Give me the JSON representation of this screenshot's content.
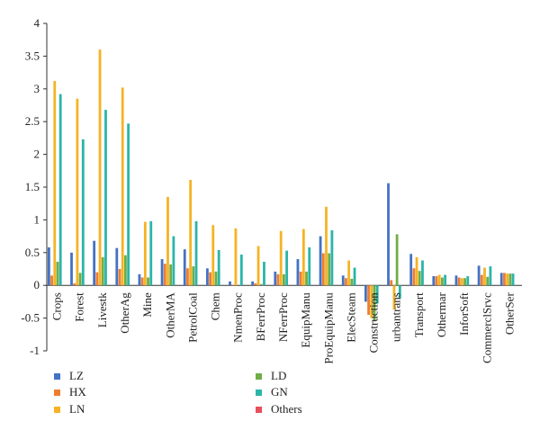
{
  "chart_data": {
    "type": "bar",
    "title": "",
    "xlabel": "",
    "ylabel": "",
    "ylim": [
      -1,
      4
    ],
    "yticks": [
      "-1",
      "-0.5",
      "0",
      "0.5",
      "1",
      "1.5",
      "2",
      "2.5",
      "3",
      "3.5",
      "4"
    ],
    "grid": false,
    "legend_position": "bottom",
    "categories": [
      "Crops",
      "Forest",
      "Livestk",
      "OtherAg",
      "Mine",
      "OtherMA",
      "PetrolCoal",
      "Chem",
      "NmenProc",
      "BFerrProc",
      "NFerrProc",
      "EquipManu",
      "ProEquipManu",
      "ElecSteam",
      "Construction",
      "urbantrans",
      "Transport",
      "Othermar",
      "InforSoft",
      "CommerclSrvc",
      "OtherSer"
    ],
    "series": [
      {
        "name": "LZ",
        "color": "#4472c4",
        "values": [
          0.58,
          0.5,
          0.68,
          0.57,
          0.17,
          0.4,
          0.55,
          0.26,
          0.06,
          0.06,
          0.21,
          0.4,
          0.75,
          0.15,
          -0.25,
          1.56,
          0.48,
          0.14,
          0.15,
          0.3,
          0.19
        ]
      },
      {
        "name": "HX",
        "color": "#ed7d31",
        "values": [
          0.15,
          0.03,
          0.2,
          0.25,
          0.12,
          0.33,
          0.26,
          0.2,
          0.01,
          0.03,
          0.17,
          0.21,
          0.49,
          0.11,
          -0.45,
          0.08,
          0.26,
          0.14,
          0.12,
          0.16,
          0.19
        ]
      },
      {
        "name": "LN",
        "color": "#f5b325",
        "values": [
          3.12,
          2.85,
          3.6,
          3.02,
          0.97,
          1.35,
          1.61,
          0.92,
          0.87,
          0.6,
          0.83,
          0.86,
          1.2,
          0.38,
          -0.5,
          -0.37,
          0.43,
          0.16,
          0.11,
          0.27,
          0.18
        ]
      },
      {
        "name": "LD",
        "color": "#70ad47",
        "values": [
          0.36,
          0.19,
          0.43,
          0.46,
          0.12,
          0.32,
          0.29,
          0.21,
          0.0,
          0.02,
          0.17,
          0.21,
          0.49,
          0.1,
          -0.55,
          0.78,
          0.22,
          0.12,
          0.11,
          0.13,
          0.18
        ]
      },
      {
        "name": "GN",
        "color": "#2bb5a9",
        "values": [
          2.92,
          2.23,
          2.68,
          2.47,
          0.98,
          0.75,
          0.98,
          0.54,
          0.47,
          0.36,
          0.53,
          0.58,
          0.84,
          0.27,
          -0.28,
          -0.2,
          0.38,
          0.16,
          0.14,
          0.29,
          0.18
        ]
      },
      {
        "name": "Others",
        "color": "#e94f5c",
        "values": [
          0,
          0,
          0,
          0,
          0,
          0,
          0,
          0,
          0,
          0,
          0,
          0,
          0,
          0,
          0,
          0,
          0,
          0,
          0,
          0,
          0
        ]
      }
    ]
  }
}
